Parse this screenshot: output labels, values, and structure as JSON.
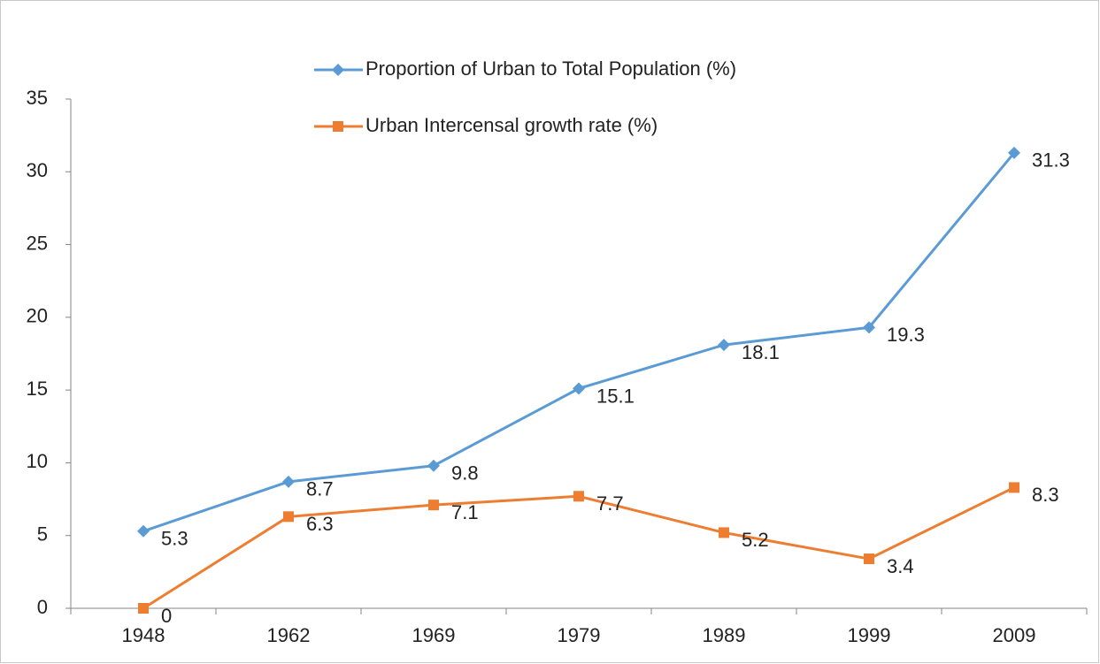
{
  "chart_data": {
    "type": "line",
    "categories": [
      "1948",
      "1962",
      "1969",
      "1979",
      "1989",
      "1999",
      "2009"
    ],
    "series": [
      {
        "name": "Proportion of Urban to Total Population (%)",
        "color": "#5b9bd5",
        "marker": "diamond",
        "values": [
          5.3,
          8.7,
          9.8,
          15.1,
          18.1,
          19.3,
          31.3
        ]
      },
      {
        "name": "Urban Intercensal growth rate (%)",
        "color": "#ed7d31",
        "marker": "square",
        "values": [
          0,
          6.3,
          7.1,
          7.7,
          5.2,
          3.4,
          8.3
        ]
      }
    ],
    "ylim": [
      0,
      35
    ],
    "yticks": [
      0,
      5,
      10,
      15,
      20,
      25,
      30,
      35
    ],
    "grid": false,
    "legend": "top"
  }
}
